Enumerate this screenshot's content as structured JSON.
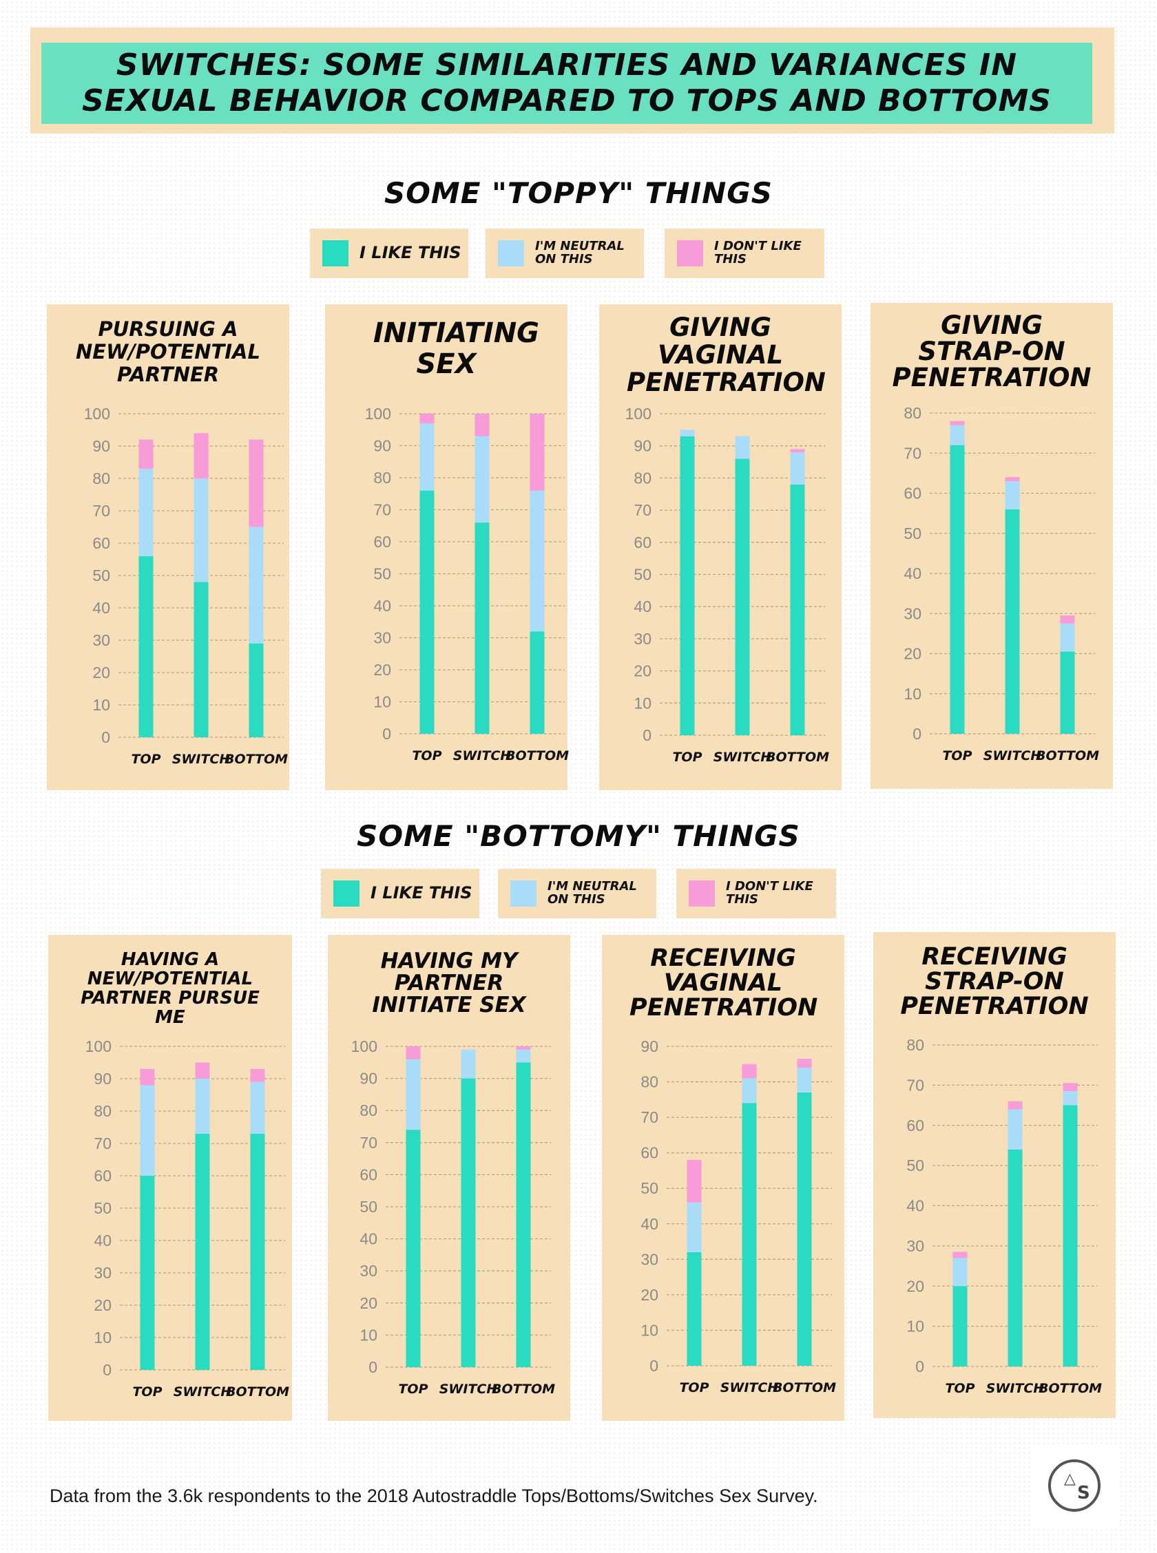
{
  "title": "SWITCHES: SOME SIMILARITIES AND VARIANCES IN\nSEXUAL BEHAVIOR COMPARED TO TOPS AND BOTTOMS",
  "colors": {
    "like": "#29dcc1",
    "neutral": "#a8dcf8",
    "dislike": "#f79cd9",
    "panel": "#f7dfb9",
    "title_band": "#6ae0c2"
  },
  "legend": {
    "like": "I LIKE THIS",
    "neutral": "I'M NEUTRAL ON THIS",
    "dislike": "I DON'T LIKE THIS"
  },
  "sections": [
    {
      "title": "SOME \"TOPPY\" THINGS"
    },
    {
      "title": "SOME \"BOTTOMY\" THINGS"
    }
  ],
  "footnote": "Data from the 3.6k respondents to the 2018 Autostraddle Tops/Bottoms/Switches Sex Survey.",
  "logo": {
    "letter": "S"
  },
  "chart_data": [
    {
      "type": "bar",
      "stacked": true,
      "title": "PURSUING A NEW/POTENTIAL PARTNER",
      "categories": [
        "TOP",
        "SWITCH",
        "BOTTOM"
      ],
      "ylim": [
        0,
        100
      ],
      "yticks": [
        0,
        10,
        20,
        30,
        40,
        50,
        60,
        70,
        80,
        90,
        100
      ],
      "grid": true,
      "series": [
        {
          "name": "I LIKE THIS",
          "values": [
            56,
            48,
            29
          ]
        },
        {
          "name": "I'M NEUTRAL ON THIS",
          "values": [
            27,
            32,
            36
          ]
        },
        {
          "name": "I DON'T LIKE THIS",
          "values": [
            9,
            14,
            27
          ]
        }
      ]
    },
    {
      "type": "bar",
      "stacked": true,
      "title": "INITIATING SEX",
      "categories": [
        "TOP",
        "SWITCH",
        "BOTTOM"
      ],
      "ylim": [
        0,
        100
      ],
      "yticks": [
        0,
        10,
        20,
        30,
        40,
        50,
        60,
        70,
        80,
        90,
        100
      ],
      "grid": true,
      "series": [
        {
          "name": "I LIKE THIS",
          "values": [
            76,
            66,
            32
          ]
        },
        {
          "name": "I'M NEUTRAL ON THIS",
          "values": [
            21,
            27,
            44
          ]
        },
        {
          "name": "I DON'T LIKE THIS",
          "values": [
            3,
            7,
            24
          ]
        }
      ]
    },
    {
      "type": "bar",
      "stacked": true,
      "title": "GIVING VAGINAL PENETRATION",
      "categories": [
        "TOP",
        "SWITCH",
        "BOTTOM"
      ],
      "ylim": [
        0,
        100
      ],
      "yticks": [
        0,
        10,
        20,
        30,
        40,
        50,
        60,
        70,
        80,
        90,
        100
      ],
      "grid": true,
      "series": [
        {
          "name": "I LIKE THIS",
          "values": [
            93,
            86,
            78
          ]
        },
        {
          "name": "I'M NEUTRAL ON THIS",
          "values": [
            2,
            7,
            10
          ]
        },
        {
          "name": "I DON'T LIKE THIS",
          "values": [
            0,
            0,
            1
          ]
        }
      ]
    },
    {
      "type": "bar",
      "stacked": true,
      "title": "GIVING STRAP-ON PENETRATION",
      "categories": [
        "TOP",
        "SWITCH",
        "BOTTOM"
      ],
      "ylim": [
        0,
        80
      ],
      "yticks": [
        0,
        10,
        20,
        30,
        40,
        50,
        60,
        70,
        80
      ],
      "grid": true,
      "series": [
        {
          "name": "I LIKE THIS",
          "values": [
            72,
            56,
            20.5
          ]
        },
        {
          "name": "I'M NEUTRAL ON THIS",
          "values": [
            5,
            7,
            7
          ]
        },
        {
          "name": "I DON'T LIKE THIS",
          "values": [
            1,
            1,
            2
          ]
        }
      ]
    },
    {
      "type": "bar",
      "stacked": true,
      "title": "HAVING A NEW/POTENTIAL PARTNER PURSUE ME",
      "categories": [
        "TOP",
        "SWITCH",
        "BOTTOM"
      ],
      "ylim": [
        0,
        100
      ],
      "yticks": [
        0,
        10,
        20,
        30,
        40,
        50,
        60,
        70,
        80,
        90,
        100
      ],
      "grid": true,
      "series": [
        {
          "name": "I LIKE THIS",
          "values": [
            60,
            73,
            73
          ]
        },
        {
          "name": "I'M NEUTRAL ON THIS",
          "values": [
            28,
            17,
            16
          ]
        },
        {
          "name": "I DON'T LIKE THIS",
          "values": [
            5,
            5,
            4
          ]
        }
      ]
    },
    {
      "type": "bar",
      "stacked": true,
      "title": "HAVING MY PARTNER INITIATE SEX",
      "categories": [
        "TOP",
        "SWITCH",
        "BOTTOM"
      ],
      "ylim": [
        0,
        100
      ],
      "yticks": [
        0,
        10,
        20,
        30,
        40,
        50,
        60,
        70,
        80,
        90,
        100
      ],
      "grid": true,
      "series": [
        {
          "name": "I LIKE THIS",
          "values": [
            74,
            90,
            95
          ]
        },
        {
          "name": "I'M NEUTRAL ON THIS",
          "values": [
            22,
            9,
            4
          ]
        },
        {
          "name": "I DON'T LIKE THIS",
          "values": [
            4,
            0,
            1
          ]
        }
      ]
    },
    {
      "type": "bar",
      "stacked": true,
      "title": "RECEIVING VAGINAL PENETRATION",
      "categories": [
        "TOP",
        "SWITCH",
        "BOTTOM"
      ],
      "ylim": [
        0,
        90
      ],
      "yticks": [
        0,
        10,
        20,
        30,
        40,
        50,
        60,
        70,
        80,
        90
      ],
      "grid": true,
      "series": [
        {
          "name": "I LIKE THIS",
          "values": [
            32,
            74,
            77
          ]
        },
        {
          "name": "I'M NEUTRAL ON THIS",
          "values": [
            14,
            7,
            7
          ]
        },
        {
          "name": "I DON'T LIKE THIS",
          "values": [
            12,
            4,
            2.5
          ]
        }
      ]
    },
    {
      "type": "bar",
      "stacked": true,
      "title": "RECEIVING STRAP-ON PENETRATION",
      "categories": [
        "TOP",
        "SWITCH",
        "BOTTOM"
      ],
      "ylim": [
        0,
        80
      ],
      "yticks": [
        0,
        10,
        20,
        30,
        40,
        50,
        60,
        70,
        80
      ],
      "grid": true,
      "series": [
        {
          "name": "I LIKE THIS",
          "values": [
            20,
            54,
            65
          ]
        },
        {
          "name": "I'M NEUTRAL ON THIS",
          "values": [
            7,
            10,
            3.5
          ]
        },
        {
          "name": "I DON'T LIKE THIS",
          "values": [
            1.5,
            2,
            2
          ]
        }
      ]
    }
  ]
}
